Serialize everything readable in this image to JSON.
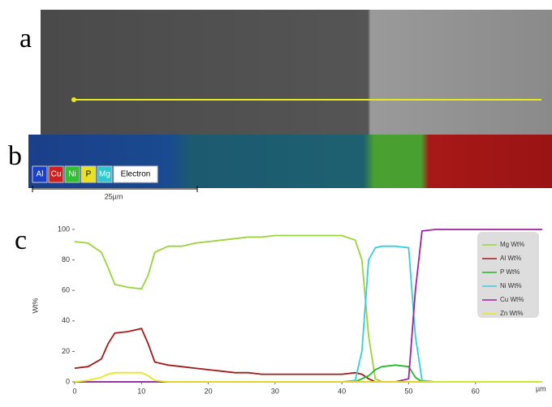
{
  "panel_labels": [
    "a",
    "b",
    "c"
  ],
  "eds_legend": [
    "Al",
    "Cu",
    "Ni",
    "P",
    "Mg",
    "Electron"
  ],
  "scale_bar": "25µm",
  "chart_data": {
    "type": "line",
    "y_label": "Wt%",
    "x_label": "µm",
    "x": [
      0,
      2,
      4,
      5,
      6,
      8,
      10,
      11,
      12,
      14,
      16,
      18,
      20,
      22,
      24,
      26,
      28,
      30,
      32,
      34,
      36,
      38,
      40,
      42,
      43,
      44,
      45,
      46,
      48,
      50,
      51,
      52,
      54,
      56,
      58,
      60,
      62,
      64,
      66,
      68,
      70
    ],
    "series": [
      {
        "name": "Mg Wt%",
        "color": "#9ad33a",
        "values": [
          92,
          91,
          85,
          75,
          64,
          62,
          61,
          70,
          85,
          89,
          89,
          91,
          92,
          93,
          94,
          95,
          95,
          96,
          96,
          96,
          96,
          96,
          96,
          93,
          80,
          30,
          2,
          0,
          0,
          0,
          0,
          0,
          0,
          0,
          0,
          0,
          0,
          0,
          0,
          0,
          0
        ]
      },
      {
        "name": "Al Wt%",
        "color": "#a01c1c",
        "values": [
          9,
          10,
          15,
          25,
          32,
          33,
          35,
          25,
          13,
          11,
          10,
          9,
          8,
          7,
          6,
          6,
          5,
          5,
          5,
          5,
          5,
          5,
          5,
          6,
          5,
          2,
          0,
          0,
          0,
          0,
          0,
          0,
          0,
          0,
          0,
          0,
          0,
          0,
          0,
          0,
          0
        ]
      },
      {
        "name": "P Wt%",
        "color": "#22b822",
        "values": [
          0,
          0,
          0,
          0,
          0,
          0,
          0,
          0,
          0,
          0,
          0,
          0,
          0,
          0,
          0,
          0,
          0,
          0,
          0,
          0,
          0,
          0,
          0,
          0,
          2,
          4,
          8,
          10,
          11,
          10,
          3,
          0,
          0,
          0,
          0,
          0,
          0,
          0,
          0,
          0,
          0
        ]
      },
      {
        "name": "Ni Wt%",
        "color": "#34d0d8",
        "values": [
          0,
          0,
          0,
          0,
          0,
          0,
          0,
          0,
          0,
          0,
          0,
          0,
          0,
          0,
          0,
          0,
          0,
          0,
          0,
          0,
          0,
          0,
          0,
          1,
          20,
          80,
          88,
          89,
          89,
          88,
          30,
          1,
          0,
          0,
          0,
          0,
          0,
          0,
          0,
          0,
          0
        ]
      },
      {
        "name": "Cu Wt%",
        "color": "#a020a0",
        "values": [
          0,
          0,
          0,
          0,
          0,
          0,
          0,
          0,
          0,
          0,
          0,
          0,
          0,
          0,
          0,
          0,
          0,
          0,
          0,
          0,
          0,
          0,
          0,
          0,
          0,
          0,
          0,
          0,
          0,
          2,
          60,
          99,
          100,
          100,
          100,
          100,
          100,
          100,
          100,
          100,
          100
        ]
      },
      {
        "name": "Zn Wt%",
        "color": "#e8e820",
        "values": [
          0,
          1,
          3,
          5,
          6,
          6,
          6,
          4,
          1,
          0,
          0,
          0,
          0,
          0,
          0,
          0,
          0,
          0,
          0,
          0,
          0,
          0,
          0,
          0,
          0,
          0,
          0,
          0,
          0,
          0,
          0,
          0,
          0,
          0,
          0,
          0,
          0,
          0,
          0,
          0,
          0
        ]
      }
    ],
    "xlim": [
      0,
      70
    ],
    "ylim": [
      0,
      100
    ],
    "xticks": [
      0,
      10,
      20,
      30,
      40,
      50,
      60
    ],
    "yticks": [
      0,
      20,
      40,
      60,
      80,
      100
    ]
  }
}
